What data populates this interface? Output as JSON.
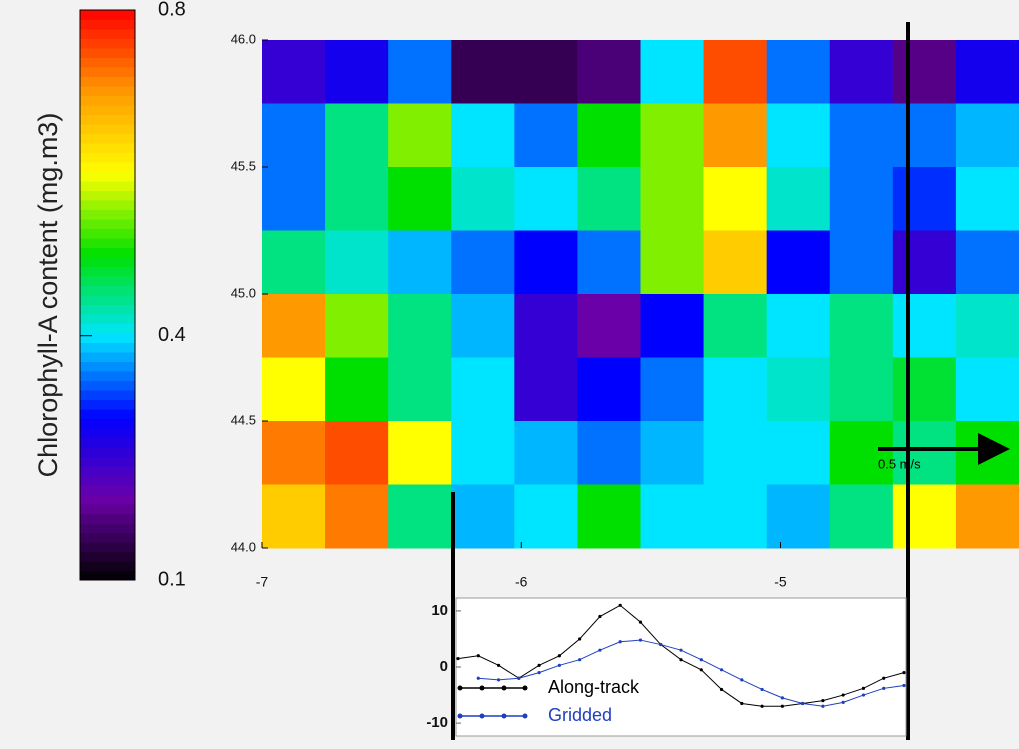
{
  "chart_data": [
    {
      "type": "heatmap",
      "colorbar_label": "Chlorophyll-A content (mg.m3)",
      "clim": [
        0.1,
        0.8
      ],
      "cticks": [
        0.8,
        0.4,
        0.1
      ],
      "colorscale": [
        "#000000",
        "#6a00a8",
        "#0000ff",
        "#00e5ff",
        "#00e000",
        "#ffff00",
        "#ff9900",
        "#ff0000"
      ],
      "xlim": [
        -7,
        -4.08
      ],
      "ylim": [
        44,
        46
      ],
      "xticks": [
        -7,
        -6,
        -5
      ],
      "yticks": [
        {
          "value": 46,
          "label": "46.0"
        },
        45.5,
        {
          "value": 45,
          "label": "45.0"
        },
        44.5,
        {
          "value": 44,
          "label": "44.0"
        }
      ],
      "z": [
        [
          0.25,
          0.28,
          0.35,
          0.15,
          0.15,
          0.17,
          0.4,
          0.75,
          0.35,
          0.25,
          0.18,
          0.28
        ],
        [
          0.35,
          0.45,
          0.55,
          0.4,
          0.35,
          0.5,
          0.55,
          0.7,
          0.4,
          0.35,
          0.35,
          0.38
        ],
        [
          0.35,
          0.45,
          0.5,
          0.42,
          0.4,
          0.45,
          0.55,
          0.6,
          0.42,
          0.35,
          0.32,
          0.4
        ],
        [
          0.45,
          0.42,
          0.38,
          0.35,
          0.3,
          0.35,
          0.55,
          0.65,
          0.3,
          0.35,
          0.25,
          0.35
        ],
        [
          0.7,
          0.55,
          0.45,
          0.38,
          0.25,
          0.2,
          0.3,
          0.45,
          0.4,
          0.45,
          0.4,
          0.42
        ],
        [
          0.6,
          0.5,
          0.45,
          0.4,
          0.25,
          0.3,
          0.35,
          0.4,
          0.42,
          0.45,
          0.48,
          0.4
        ],
        [
          0.72,
          0.75,
          0.6,
          0.4,
          0.38,
          0.35,
          0.38,
          0.4,
          0.4,
          0.5,
          0.45,
          0.5
        ],
        [
          0.65,
          0.72,
          0.45,
          0.38,
          0.4,
          0.5,
          0.4,
          0.4,
          0.38,
          0.45,
          0.6,
          0.7
        ]
      ],
      "annotation": "0.5 m/s"
    },
    {
      "type": "line",
      "ylim": [
        -12.3,
        12.3
      ],
      "yticks": [
        10,
        0,
        -10
      ],
      "series": [
        {
          "name": "Along-track",
          "color": "#000000",
          "values": [
            1.5,
            2,
            0.3,
            -2,
            0.3,
            2,
            5,
            9,
            11,
            8,
            4,
            1.3,
            -0.5,
            -4,
            -6.5,
            -7,
            -7,
            -6.5,
            -6,
            -5,
            -3.8,
            -2,
            -1
          ]
        },
        {
          "name": "Gridded",
          "color": "#1f3fbf",
          "values": [
            null,
            -2,
            -2.3,
            -2,
            -1,
            0.3,
            1.3,
            3,
            4.5,
            4.8,
            4,
            3,
            1.3,
            -0.5,
            -2.3,
            -4,
            -5.5,
            -6.5,
            -7,
            -6.3,
            -5,
            -3.8,
            -3.3
          ]
        }
      ]
    }
  ]
}
